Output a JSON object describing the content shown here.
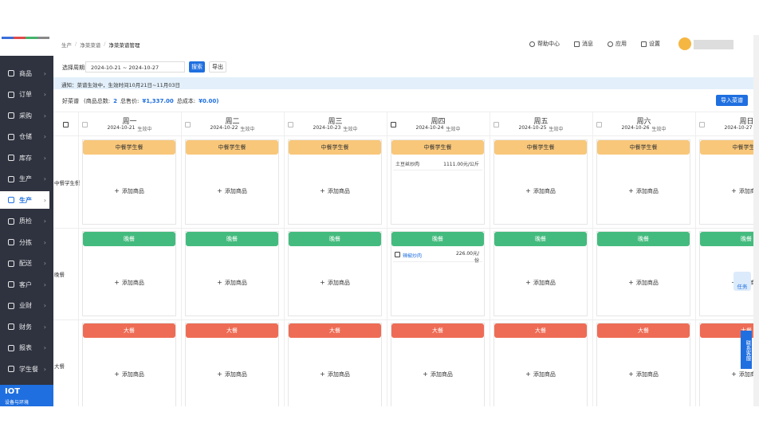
{
  "sidebar": {
    "items": [
      "商品",
      "订单",
      "采购",
      "仓储",
      "库存",
      "生产",
      "生产",
      "质检",
      "分拣",
      "配送",
      "客户",
      "业财",
      "财务",
      "报表",
      "学生餐"
    ],
    "footer": {
      "title": "IOT",
      "subtitle": "设备与环境"
    }
  },
  "header": {
    "breadcrumb": [
      "生产",
      "净菜菜谱",
      "净菜菜谱管理"
    ],
    "actions": [
      "帮助中心",
      "消息",
      "应用",
      "设置"
    ]
  },
  "toolbar": {
    "period_label": "选择周期:",
    "date_range": "2024-10-21 ~ 2024-10-27",
    "search": "搜索",
    "export": "导出"
  },
  "notice": "通知：菜谱生效中，生效时间10月21日~11月03日",
  "summary": {
    "name": "好菜谱",
    "count_label": "(商品总数:",
    "count": "2",
    "price_label": "总售价:",
    "price": "¥1,337.00",
    "cost_label": "总成本:",
    "cost": "¥0.00)",
    "import": "导入菜谱"
  },
  "grid": {
    "add_label": "添加商品",
    "status": "生效中",
    "meals": [
      "中餐学生餐",
      "晚餐",
      "大餐"
    ],
    "days": [
      {
        "name": "周一",
        "date": "2024-10-21",
        "menus": [
          [],
          [],
          []
        ]
      },
      {
        "name": "周二",
        "date": "2024-10-22",
        "menus": [
          [],
          [],
          []
        ]
      },
      {
        "name": "周三",
        "date": "2024-10-23",
        "menus": [
          [],
          [],
          []
        ]
      },
      {
        "name": "周四",
        "date": "2024-10-24",
        "menus": [
          [
            {
              "name": "土豆丝炒肉",
              "price": "1111.00元/公斤"
            }
          ],
          [
            {
              "name": "辣椒炒肉",
              "price": "226.00元/份"
            }
          ],
          []
        ]
      },
      {
        "name": "周五",
        "date": "2024-10-25",
        "menus": [
          [],
          [],
          []
        ]
      },
      {
        "name": "周六",
        "date": "2024-10-26",
        "menus": [
          [],
          [],
          []
        ]
      },
      {
        "name": "周日",
        "date": "2024-10-27",
        "menus": [
          [],
          [],
          []
        ]
      }
    ]
  },
  "float": {
    "task": "任务",
    "service": "联系客服"
  }
}
